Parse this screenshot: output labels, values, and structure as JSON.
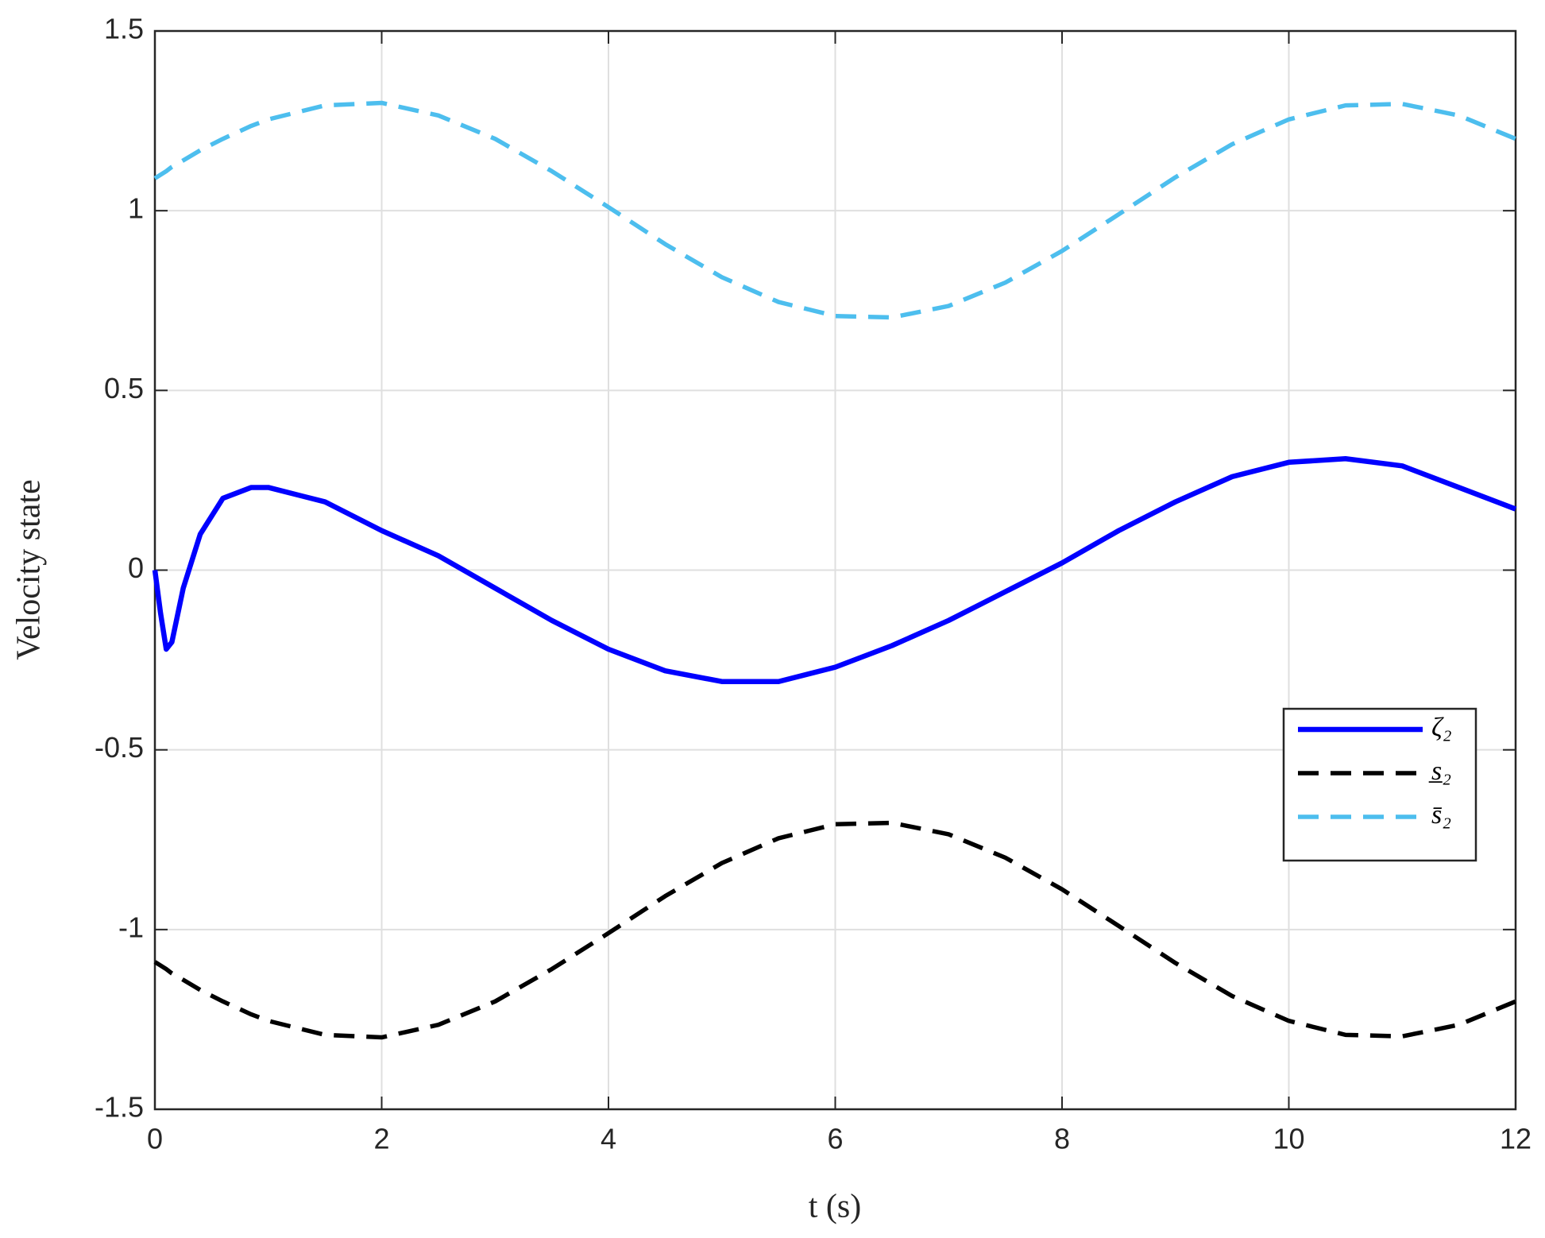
{
  "chart_data": {
    "type": "line",
    "xlabel": "t (s)",
    "ylabel": "Velocity state",
    "x": [
      0,
      0.05,
      0.1,
      0.15,
      0.25,
      0.4,
      0.6,
      0.85,
      1,
      1.5,
      2,
      2.5,
      3,
      3.5,
      4,
      4.5,
      5,
      5.5,
      6,
      6.5,
      7,
      7.5,
      8,
      8.5,
      9,
      9.5,
      10,
      10.5,
      11,
      11.5,
      12
    ],
    "series": [
      {
        "name": "ζ₂",
        "color": "#0000ff",
        "style": "solid",
        "values": [
          0,
          -0.12,
          -0.22,
          -0.2,
          -0.05,
          0.1,
          0.2,
          0.23,
          0.23,
          0.19,
          0.11,
          0.04,
          -0.05,
          -0.14,
          -0.22,
          -0.28,
          -0.31,
          -0.31,
          -0.27,
          -0.21,
          -0.14,
          -0.06,
          0.02,
          0.11,
          0.19,
          0.26,
          0.3,
          0.31,
          0.29,
          0.23,
          0.17
        ]
      },
      {
        "name": "s̲₂",
        "color": "#000000",
        "style": "dashed",
        "values": [
          -1.09,
          -1.1,
          -1.11,
          -1.122,
          -1.14,
          -1.168,
          -1.2,
          -1.236,
          -1.254,
          -1.293,
          -1.3,
          -1.265,
          -1.2,
          -1.11,
          -1.01,
          -0.907,
          -0.815,
          -0.746,
          -0.707,
          -0.703,
          -0.735,
          -0.8,
          -0.888,
          -0.99,
          -1.093,
          -1.185,
          -1.254,
          -1.293,
          -1.297,
          -1.265,
          -1.2
        ]
      },
      {
        "name": "s̄₂",
        "color": "#4dbeee",
        "style": "dashed",
        "values": [
          1.09,
          1.1,
          1.11,
          1.122,
          1.14,
          1.168,
          1.2,
          1.236,
          1.254,
          1.293,
          1.3,
          1.265,
          1.2,
          1.11,
          1.01,
          0.907,
          0.815,
          0.746,
          0.707,
          0.703,
          0.735,
          0.8,
          0.888,
          0.99,
          1.093,
          1.185,
          1.254,
          1.293,
          1.297,
          1.265,
          1.2
        ]
      }
    ],
    "xlim": [
      0,
      12
    ],
    "xticks": [
      0,
      2,
      4,
      6,
      8,
      10,
      12
    ],
    "ylim": [
      -1.5,
      1.5
    ],
    "yticks": [
      -1.5,
      -1,
      -0.5,
      0,
      0.5,
      1,
      1.5
    ],
    "grid": true,
    "legend_position": "lower right"
  }
}
